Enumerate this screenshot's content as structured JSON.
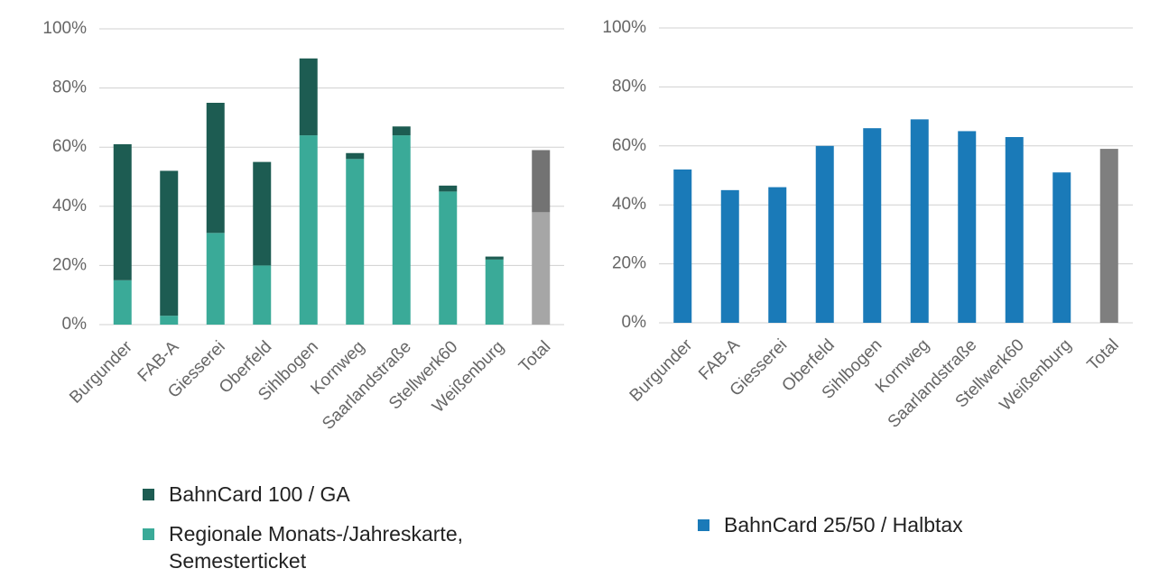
{
  "chart_data": [
    {
      "type": "stacked_bar",
      "categories": [
        "Burgunder",
        "FAB-A",
        "Giesserei",
        "Oberfeld",
        "Sihlbogen",
        "Kornweg",
        "Saarlandstraße",
        "Stellwerk60",
        "Weißenburg",
        "Total"
      ],
      "series": [
        {
          "name": "Regionale Monats-/Jahreskarte, Semesterticket",
          "color": "#3aaa98",
          "total_color": "#a6a6a6",
          "values": [
            15,
            3,
            31,
            20,
            64,
            56,
            64,
            45,
            22,
            38
          ]
        },
        {
          "name": "BahnCard 100 / GA",
          "color": "#1d5c52",
          "total_color": "#737373",
          "values": [
            46,
            49,
            44,
            35,
            26,
            2,
            3,
            2,
            1,
            21
          ]
        }
      ],
      "ylim": [
        0,
        100
      ],
      "yticks": [
        {
          "value": 0,
          "label": "0%"
        },
        {
          "value": 20,
          "label": "20%"
        },
        {
          "value": 40,
          "label": "40%"
        },
        {
          "value": 60,
          "label": "60%"
        },
        {
          "value": 80,
          "label": "80%"
        },
        {
          "value": 100,
          "label": "100%"
        }
      ],
      "grid": true
    },
    {
      "type": "bar",
      "categories": [
        "Burgunder",
        "FAB-A",
        "Giesserei",
        "Oberfeld",
        "Sihlbogen",
        "Kornweg",
        "Saarlandstraße",
        "Stellwerk60",
        "Weißenburg",
        "Total"
      ],
      "series": [
        {
          "name": "BahnCard 25/50 / Halbtax",
          "color": "#1a7ab8",
          "total_color": "#7f7f7f",
          "values": [
            52,
            45,
            46,
            60,
            66,
            69,
            65,
            63,
            51,
            59
          ]
        }
      ],
      "ylim": [
        0,
        100
      ],
      "yticks": [
        {
          "value": 0,
          "label": "0%"
        },
        {
          "value": 20,
          "label": "20%"
        },
        {
          "value": 40,
          "label": "40%"
        },
        {
          "value": 60,
          "label": "60%"
        },
        {
          "value": 80,
          "label": "80%"
        },
        {
          "value": 100,
          "label": "100%"
        }
      ],
      "grid": true
    }
  ]
}
